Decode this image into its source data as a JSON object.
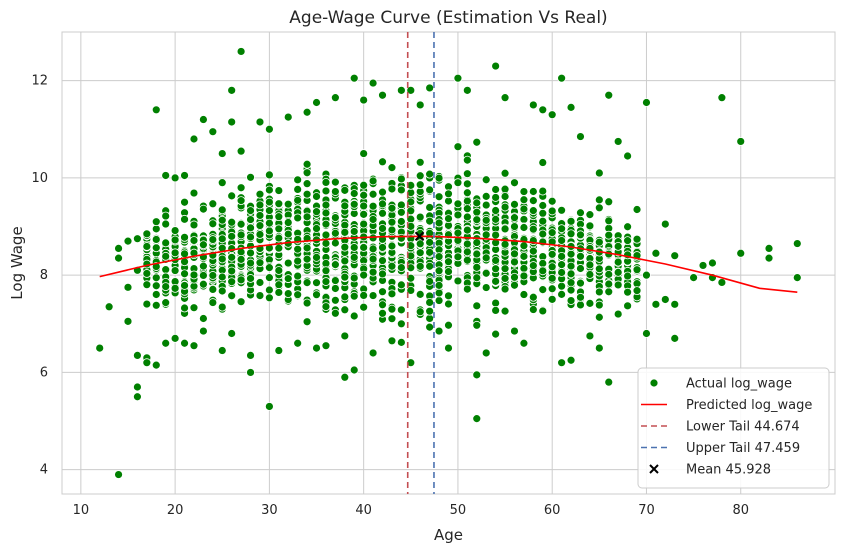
{
  "chart_data": {
    "type": "scatter",
    "title": "Age-Wage Curve (Estimation Vs Real)",
    "xlabel": "Age",
    "ylabel": "Log Wage",
    "xlim": [
      8,
      90
    ],
    "ylim": [
      3.5,
      13.0
    ],
    "xticks": [
      10,
      20,
      30,
      40,
      50,
      60,
      70,
      80
    ],
    "yticks": [
      4,
      6,
      8,
      10,
      12
    ],
    "grid": true,
    "legend_position": "lower-right",
    "colors": {
      "scatter": "#008000",
      "predicted": "#ff0000",
      "lower_tail": "#c44e52",
      "upper_tail": "#4c72b0",
      "mean": "#000000",
      "grid": "#cccccc"
    },
    "series": [
      {
        "name": "Actual log_wage",
        "kind": "scatter",
        "points": [
          [
            12,
            6.5
          ],
          [
            13,
            7.35
          ],
          [
            14,
            3.9
          ],
          [
            14,
            8.55
          ],
          [
            14,
            8.35
          ],
          [
            15,
            7.75
          ],
          [
            15,
            8.7
          ],
          [
            15,
            7.05
          ],
          [
            16,
            5.5
          ],
          [
            16,
            5.7
          ],
          [
            16,
            6.35
          ],
          [
            16,
            8.1
          ],
          [
            16,
            8.75
          ],
          [
            17,
            6.3
          ],
          [
            17,
            6.2
          ],
          [
            17,
            8.85
          ],
          [
            18,
            6.15
          ],
          [
            18,
            11.4
          ],
          [
            18,
            9.1
          ],
          [
            19,
            10.05
          ],
          [
            19,
            6.6
          ],
          [
            20,
            6.7
          ],
          [
            20,
            10.0
          ],
          [
            21,
            10.05
          ],
          [
            21,
            6.6
          ],
          [
            22,
            10.8
          ],
          [
            22,
            6.55
          ],
          [
            23,
            11.2
          ],
          [
            23,
            6.85
          ],
          [
            24,
            10.95
          ],
          [
            25,
            6.45
          ],
          [
            25,
            10.5
          ],
          [
            26,
            11.8
          ],
          [
            26,
            11.15
          ],
          [
            26,
            6.8
          ],
          [
            27,
            12.6
          ],
          [
            27,
            10.55
          ],
          [
            28,
            6.0
          ],
          [
            28,
            6.35
          ],
          [
            29,
            11.15
          ],
          [
            30,
            5.3
          ],
          [
            30,
            11.0
          ],
          [
            31,
            6.45
          ],
          [
            32,
            11.25
          ],
          [
            33,
            6.6
          ],
          [
            34,
            11.35
          ],
          [
            35,
            6.5
          ],
          [
            35,
            11.55
          ],
          [
            36,
            6.55
          ],
          [
            37,
            11.65
          ],
          [
            38,
            5.9
          ],
          [
            38,
            6.75
          ],
          [
            39,
            12.05
          ],
          [
            39,
            6.05
          ],
          [
            40,
            11.6
          ],
          [
            41,
            11.95
          ],
          [
            41,
            6.4
          ],
          [
            42,
            11.7
          ],
          [
            43,
            6.65
          ],
          [
            44,
            11.8
          ],
          [
            44,
            7.0
          ],
          [
            45,
            6.2
          ],
          [
            45,
            11.8
          ],
          [
            46,
            11.5
          ],
          [
            47,
            11.85
          ],
          [
            48,
            6.85
          ],
          [
            49,
            6.5
          ],
          [
            50,
            12.05
          ],
          [
            51,
            11.8
          ],
          [
            52,
            5.05
          ],
          [
            52,
            5.95
          ],
          [
            53,
            6.4
          ],
          [
            54,
            12.3
          ],
          [
            55,
            11.65
          ],
          [
            56,
            6.85
          ],
          [
            57,
            6.6
          ],
          [
            58,
            11.5
          ],
          [
            59,
            11.4
          ],
          [
            60,
            11.3
          ],
          [
            61,
            12.05
          ],
          [
            61,
            6.2
          ],
          [
            62,
            11.45
          ],
          [
            62,
            6.25
          ],
          [
            63,
            10.85
          ],
          [
            64,
            6.75
          ],
          [
            65,
            6.5
          ],
          [
            65,
            10.1
          ],
          [
            66,
            11.7
          ],
          [
            66,
            5.8
          ],
          [
            67,
            10.75
          ],
          [
            67,
            7.2
          ],
          [
            68,
            10.45
          ],
          [
            68,
            7.65
          ],
          [
            69,
            9.35
          ],
          [
            70,
            11.55
          ],
          [
            70,
            6.8
          ],
          [
            70,
            8.0
          ],
          [
            71,
            8.45
          ],
          [
            71,
            7.4
          ],
          [
            72,
            9.05
          ],
          [
            72,
            7.5
          ],
          [
            73,
            7.4
          ],
          [
            73,
            6.7
          ],
          [
            73,
            8.4
          ],
          [
            75,
            7.95
          ],
          [
            76,
            8.2
          ],
          [
            77,
            8.25
          ],
          [
            77,
            7.95
          ],
          [
            78,
            11.65
          ],
          [
            78,
            7.85
          ],
          [
            80,
            10.75
          ],
          [
            80,
            8.45
          ],
          [
            83,
            8.55
          ],
          [
            83,
            8.35
          ],
          [
            86,
            8.65
          ],
          [
            86,
            7.95
          ]
        ]
      },
      {
        "name": "Predicted log_wage",
        "kind": "line",
        "x": [
          12,
          17,
          22,
          27,
          32,
          37,
          42,
          47,
          52,
          57,
          62,
          67,
          72,
          77,
          82,
          86
        ],
        "y": [
          7.97,
          8.2,
          8.39,
          8.55,
          8.67,
          8.75,
          8.79,
          8.8,
          8.76,
          8.69,
          8.58,
          8.42,
          8.23,
          8.0,
          7.73,
          7.65
        ]
      },
      {
        "name": "Lower Tail 44.674",
        "kind": "vline",
        "x": 44.674
      },
      {
        "name": "Upper Tail 47.459",
        "kind": "vline",
        "x": 47.459
      },
      {
        "name": "Mean 45.928",
        "kind": "marker",
        "x": 45.928,
        "y": 8.8
      }
    ],
    "dense_cloud": {
      "x_range": [
        17,
        69
      ],
      "center_curve_x": [
        17,
        30,
        40,
        50,
        60,
        69
      ],
      "center_curve_y": [
        8.2,
        8.6,
        8.75,
        8.75,
        8.55,
        8.2
      ],
      "spread_y": [
        1.05,
        1.55,
        1.75,
        1.7,
        1.45,
        1.0
      ]
    }
  }
}
